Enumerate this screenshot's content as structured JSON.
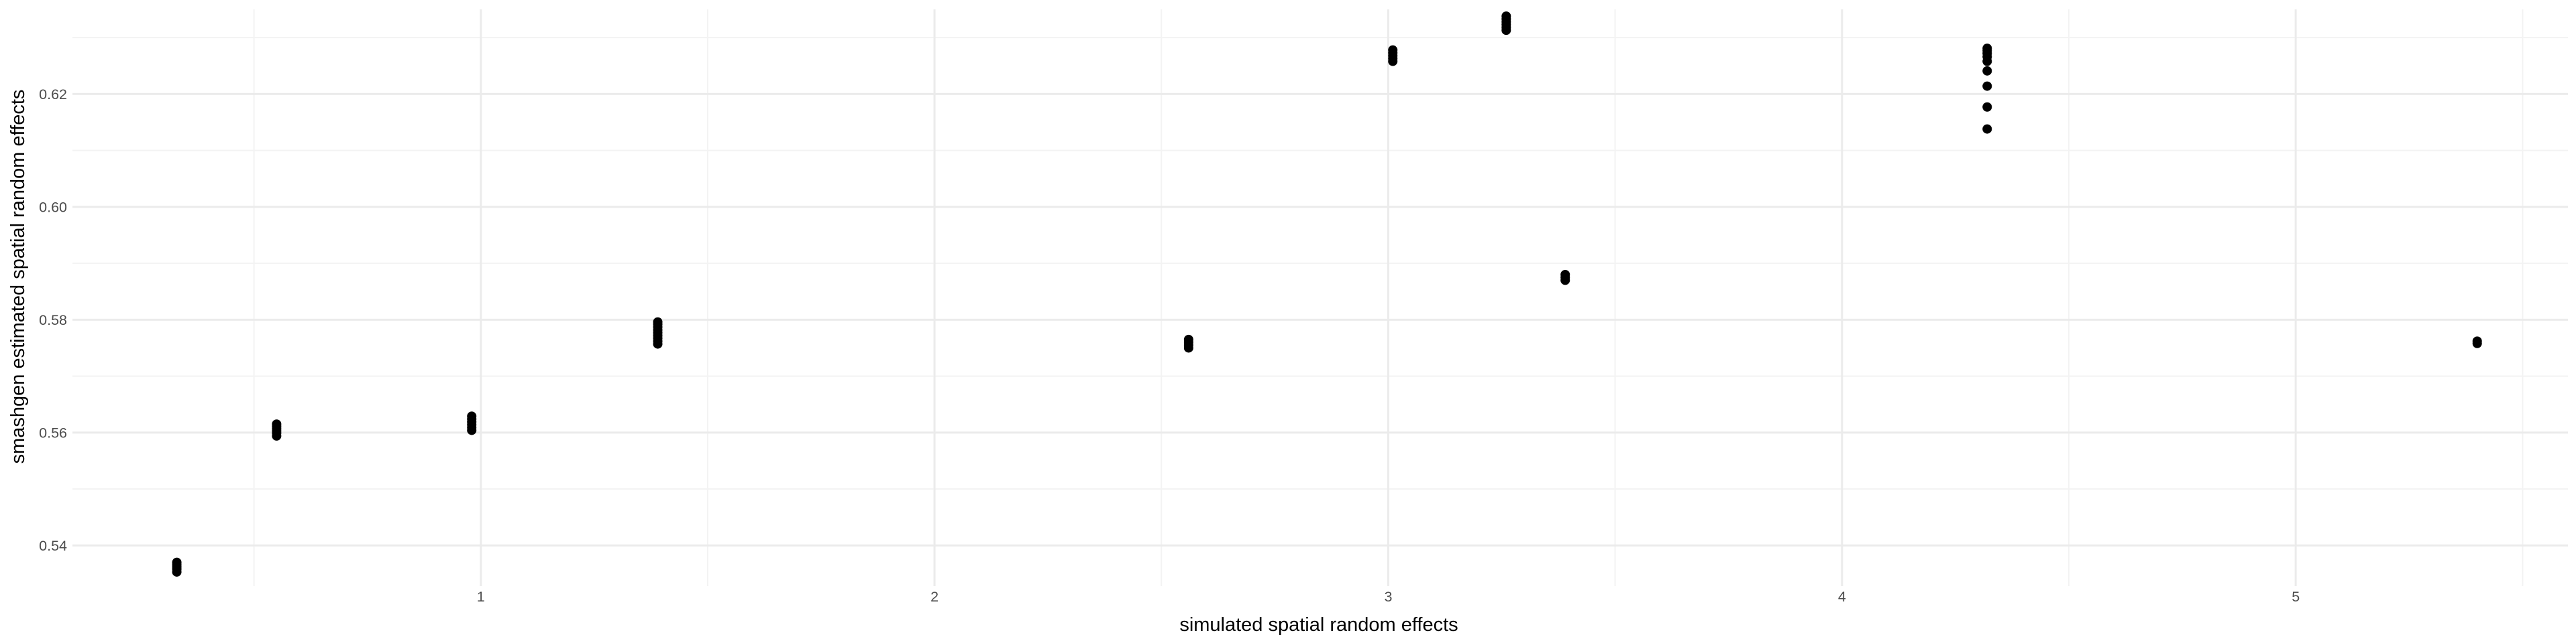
{
  "chart_data": {
    "type": "scatter",
    "title": "",
    "xlabel": "simulated spatial random effects",
    "ylabel": "smashgen estimated spatial random effects",
    "xlim": [
      0.1,
      5.6
    ],
    "ylim": [
      0.5328,
      0.635
    ],
    "x_ticks": [
      1,
      2,
      3,
      4,
      5
    ],
    "x_tick_labels": [
      "1",
      "2",
      "3",
      "4",
      "5"
    ],
    "y_ticks": [
      0.54,
      0.56,
      0.58,
      0.6,
      0.62
    ],
    "y_tick_labels": [
      "0.54",
      "0.56",
      "0.58",
      "0.60",
      "0.62"
    ],
    "grid": true,
    "legend": "none",
    "colors": {
      "point": "#000000",
      "grid_major": "#ebebeb",
      "grid_minor": "#f3f3f3",
      "background": "#ffffff"
    },
    "series": [
      {
        "points": [
          {
            "x": 0.33,
            "y": 0.5353
          },
          {
            "x": 0.33,
            "y": 0.5358
          },
          {
            "x": 0.33,
            "y": 0.5362
          },
          {
            "x": 0.33,
            "y": 0.5366
          },
          {
            "x": 0.33,
            "y": 0.537
          },
          {
            "x": 0.55,
            "y": 0.5594
          },
          {
            "x": 0.55,
            "y": 0.5599
          },
          {
            "x": 0.55,
            "y": 0.5603
          },
          {
            "x": 0.55,
            "y": 0.5607
          },
          {
            "x": 0.55,
            "y": 0.5611
          },
          {
            "x": 0.55,
            "y": 0.5615
          },
          {
            "x": 0.98,
            "y": 0.5604
          },
          {
            "x": 0.98,
            "y": 0.5609
          },
          {
            "x": 0.98,
            "y": 0.5614
          },
          {
            "x": 0.98,
            "y": 0.5619
          },
          {
            "x": 0.98,
            "y": 0.5624
          },
          {
            "x": 0.98,
            "y": 0.5629
          },
          {
            "x": 1.39,
            "y": 0.5757
          },
          {
            "x": 1.39,
            "y": 0.5762
          },
          {
            "x": 1.39,
            "y": 0.5767
          },
          {
            "x": 1.39,
            "y": 0.5772
          },
          {
            "x": 1.39,
            "y": 0.5777
          },
          {
            "x": 1.39,
            "y": 0.5782
          },
          {
            "x": 1.39,
            "y": 0.5787
          },
          {
            "x": 1.39,
            "y": 0.5792
          },
          {
            "x": 1.39,
            "y": 0.5796
          },
          {
            "x": 2.56,
            "y": 0.575
          },
          {
            "x": 2.56,
            "y": 0.5755
          },
          {
            "x": 2.56,
            "y": 0.576
          },
          {
            "x": 2.56,
            "y": 0.5765
          },
          {
            "x": 3.01,
            "y": 0.6258
          },
          {
            "x": 3.01,
            "y": 0.6263
          },
          {
            "x": 3.01,
            "y": 0.6268
          },
          {
            "x": 3.01,
            "y": 0.6273
          },
          {
            "x": 3.01,
            "y": 0.6278
          },
          {
            "x": 3.26,
            "y": 0.6313
          },
          {
            "x": 3.26,
            "y": 0.6318
          },
          {
            "x": 3.26,
            "y": 0.6323
          },
          {
            "x": 3.26,
            "y": 0.6328
          },
          {
            "x": 3.26,
            "y": 0.6333
          },
          {
            "x": 3.26,
            "y": 0.6338
          },
          {
            "x": 3.39,
            "y": 0.587
          },
          {
            "x": 3.39,
            "y": 0.5875
          },
          {
            "x": 3.39,
            "y": 0.588
          },
          {
            "x": 4.32,
            "y": 0.6138
          },
          {
            "x": 4.32,
            "y": 0.6177
          },
          {
            "x": 4.32,
            "y": 0.6214
          },
          {
            "x": 4.32,
            "y": 0.6241
          },
          {
            "x": 4.32,
            "y": 0.6258
          },
          {
            "x": 4.32,
            "y": 0.6266
          },
          {
            "x": 4.32,
            "y": 0.6272
          },
          {
            "x": 4.32,
            "y": 0.6277
          },
          {
            "x": 4.32,
            "y": 0.6281
          },
          {
            "x": 5.4,
            "y": 0.5758
          },
          {
            "x": 5.4,
            "y": 0.5762
          }
        ]
      }
    ]
  }
}
